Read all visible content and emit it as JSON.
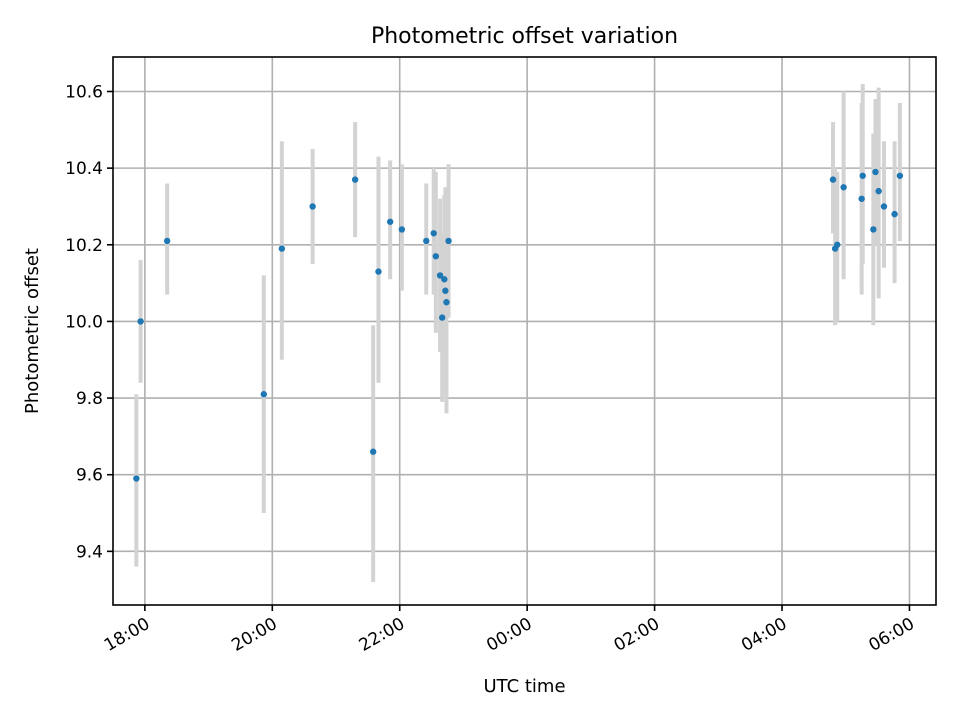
{
  "chart_data": {
    "type": "scatter",
    "title": "Photometric offset variation",
    "xlabel": "UTC time",
    "ylabel": "Photometric offset",
    "grid": true,
    "x_axis_kind": "time",
    "xlim": [
      "17:30",
      "06:25"
    ],
    "ylim": [
      9.26,
      10.69
    ],
    "xticks": [
      "18:00",
      "20:00",
      "22:00",
      "00:00",
      "02:00",
      "04:00",
      "06:00"
    ],
    "yticks": [
      9.4,
      9.6,
      9.8,
      10.0,
      10.2,
      10.4,
      10.6
    ],
    "marker_color": "#1f77b4",
    "errorbar_color": "#d3d3d3",
    "points": [
      {
        "x": "17:52",
        "y": 9.59,
        "err_low": 9.36,
        "err_high": 9.81
      },
      {
        "x": "17:56",
        "y": 10.0,
        "err_low": 9.84,
        "err_high": 10.16
      },
      {
        "x": "18:21",
        "y": 10.21,
        "err_low": 10.07,
        "err_high": 10.36
      },
      {
        "x": "19:52",
        "y": 9.81,
        "err_low": 9.5,
        "err_high": 10.12
      },
      {
        "x": "20:09",
        "y": 10.19,
        "err_low": 9.9,
        "err_high": 10.47
      },
      {
        "x": "20:38",
        "y": 10.3,
        "err_low": 10.15,
        "err_high": 10.45
      },
      {
        "x": "21:18",
        "y": 10.37,
        "err_low": 10.22,
        "err_high": 10.52
      },
      {
        "x": "21:35",
        "y": 9.66,
        "err_low": 9.32,
        "err_high": 9.99
      },
      {
        "x": "21:40",
        "y": 10.13,
        "err_low": 9.84,
        "err_high": 10.43
      },
      {
        "x": "21:51",
        "y": 10.26,
        "err_low": 10.11,
        "err_high": 10.42
      },
      {
        "x": "22:02",
        "y": 10.24,
        "err_low": 10.08,
        "err_high": 10.41
      },
      {
        "x": "22:25",
        "y": 10.21,
        "err_low": 10.07,
        "err_high": 10.36
      },
      {
        "x": "22:32",
        "y": 10.23,
        "err_low": 10.07,
        "err_high": 10.4
      },
      {
        "x": "22:34",
        "y": 10.17,
        "err_low": 9.97,
        "err_high": 10.39
      },
      {
        "x": "22:38",
        "y": 10.12,
        "err_low": 9.92,
        "err_high": 10.32
      },
      {
        "x": "22:40",
        "y": 10.01,
        "err_low": 9.79,
        "err_high": 10.23
      },
      {
        "x": "22:42",
        "y": 10.11,
        "err_low": 9.9,
        "err_high": 10.33
      },
      {
        "x": "22:43",
        "y": 10.08,
        "err_low": 9.81,
        "err_high": 10.35
      },
      {
        "x": "22:44",
        "y": 10.05,
        "err_low": 9.76,
        "err_high": 10.35
      },
      {
        "x": "22:46",
        "y": 10.21,
        "err_low": 10.01,
        "err_high": 10.41
      },
      {
        "x": "04:48",
        "y": 10.37,
        "err_low": 10.23,
        "err_high": 10.52
      },
      {
        "x": "04:50",
        "y": 10.19,
        "err_low": 9.99,
        "err_high": 10.4
      },
      {
        "x": "04:52",
        "y": 10.2,
        "err_low": 10.0,
        "err_high": 10.39
      },
      {
        "x": "04:58",
        "y": 10.35,
        "err_low": 10.11,
        "err_high": 10.6
      },
      {
        "x": "05:15",
        "y": 10.32,
        "err_low": 10.07,
        "err_high": 10.57
      },
      {
        "x": "05:16",
        "y": 10.38,
        "err_low": 10.15,
        "err_high": 10.62
      },
      {
        "x": "05:26",
        "y": 10.24,
        "err_low": 9.99,
        "err_high": 10.49
      },
      {
        "x": "05:28",
        "y": 10.39,
        "err_low": 10.2,
        "err_high": 10.58
      },
      {
        "x": "05:31",
        "y": 10.34,
        "err_low": 10.06,
        "err_high": 10.61
      },
      {
        "x": "05:36",
        "y": 10.3,
        "err_low": 10.14,
        "err_high": 10.47
      },
      {
        "x": "05:46",
        "y": 10.28,
        "err_low": 10.1,
        "err_high": 10.47
      },
      {
        "x": "05:51",
        "y": 10.38,
        "err_low": 10.21,
        "err_high": 10.57
      }
    ]
  }
}
